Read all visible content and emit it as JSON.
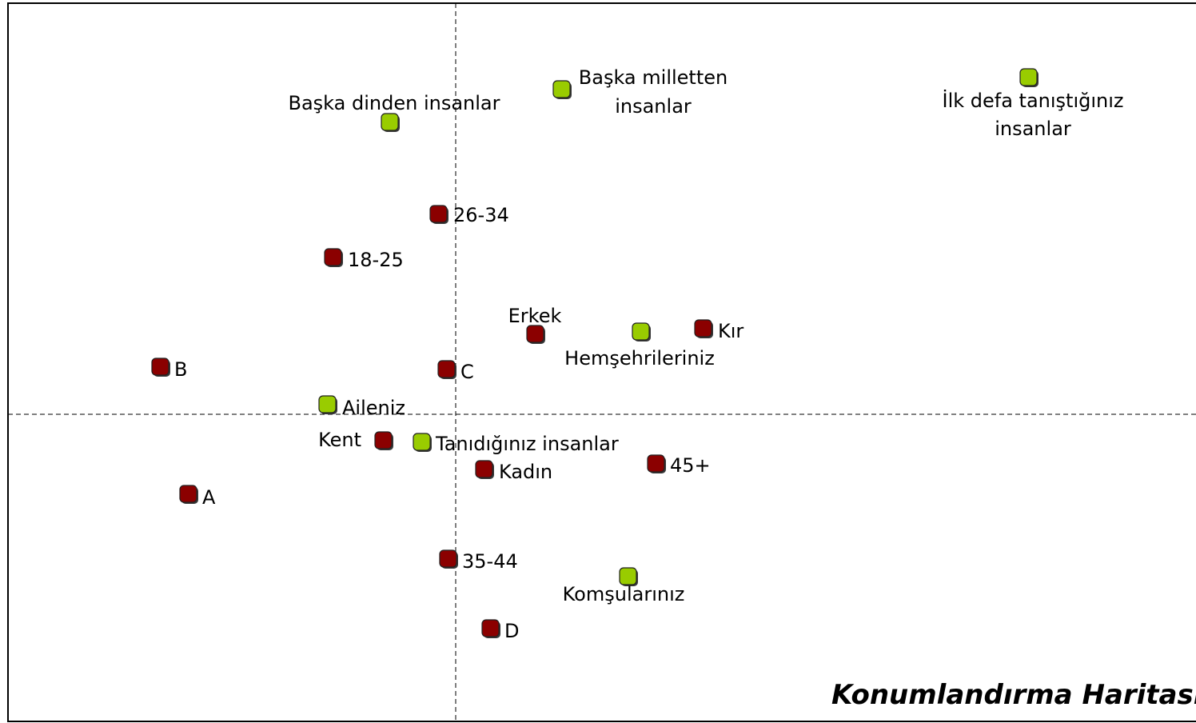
{
  "chart_data": {
    "type": "scatter",
    "title": "Konumlandırma Haritası",
    "xlim": [
      -5.6,
      9.26
    ],
    "ylim": [
      -3.84,
      5.14
    ],
    "series": [
      {
        "color": "#99cc00",
        "x": [
          -0.82,
          1.33,
          7.17,
          2.32,
          -1.6,
          -0.42,
          2.16
        ],
        "values": [
          3.65,
          4.06,
          4.21,
          1.03,
          0.12,
          -0.35,
          -2.03
        ],
        "labels": [
          [
            "Başka dinden insanlar"
          ],
          [
            "Başka milletten",
            "insanlar"
          ],
          [
            "İlk defa tanıştığınız",
            "insanlar"
          ],
          [
            "Hemşehrileriniz"
          ],
          [
            "Aileniz"
          ],
          [
            "Tanıdığınız insanlar"
          ],
          [
            "Komşularınız"
          ]
        ]
      },
      {
        "color": "#8b0000",
        "x": [
          -0.21,
          -1.53,
          1.0,
          3.1,
          -3.69,
          -0.11,
          -0.9,
          0.36,
          2.51,
          -3.34,
          -0.09,
          0.44
        ],
        "values": [
          2.5,
          1.96,
          1.0,
          1.07,
          0.59,
          0.56,
          -0.33,
          -0.69,
          -0.62,
          -1.0,
          -1.81,
          -2.68
        ],
        "labels": [
          [
            "26-34"
          ],
          [
            "18-25"
          ],
          [
            "Erkek"
          ],
          [
            "Kır"
          ],
          [
            "B"
          ],
          [
            "C"
          ],
          [
            "Kent"
          ],
          [
            "Kadın"
          ],
          [
            "45+"
          ],
          [
            "A"
          ],
          [
            "35-44"
          ],
          [
            "D"
          ]
        ]
      }
    ]
  }
}
